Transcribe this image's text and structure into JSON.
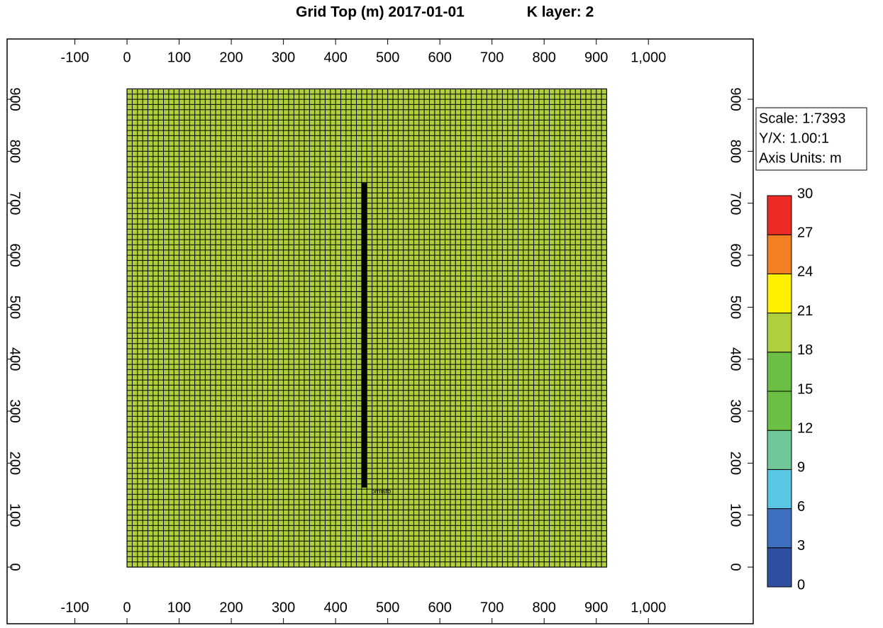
{
  "chart_data": {
    "type": "grid-map",
    "title": "Grid Top (m) 2017-01-01",
    "subtitle": "K layer: 2",
    "xlim": [
      -230,
      1201
    ],
    "ylim": [
      -109,
      1016
    ],
    "xticks": [
      -100,
      0,
      100,
      200,
      300,
      400,
      500,
      600,
      700,
      800,
      900,
      {
        "value": 1000,
        "label": "1,000"
      }
    ],
    "yticks": [
      0,
      100,
      200,
      300,
      400,
      500,
      600,
      700,
      800,
      900
    ],
    "grid": {
      "x": [
        0,
        920
      ],
      "y": [
        0,
        920
      ],
      "cell_size": 10,
      "value": 19.5
    },
    "well": {
      "name": "prmsfb",
      "x": 455,
      "y": [
        153,
        739
      ]
    },
    "info": [
      "Scale: 1:7393",
      "Y/X: 1.00:1",
      "Axis Units: m"
    ],
    "colorbar": {
      "ticks": [
        0,
        3,
        6,
        9,
        12,
        15,
        18,
        21,
        24,
        27,
        30
      ],
      "colors": [
        "#2f4fa0",
        "#3f6fbf",
        "#5ac6e6",
        "#6fc79a",
        "#6cbf45",
        "#6cbf45",
        "#afcf3c",
        "#fff000",
        "#f28022",
        "#ec2a26"
      ]
    }
  }
}
